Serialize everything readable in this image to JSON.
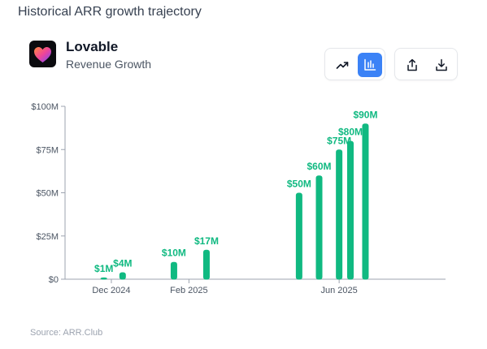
{
  "heading": "Historical ARR growth trajectory",
  "company": {
    "name": "Lovable",
    "subtitle": "Revenue Growth",
    "logo_icon": "lovable-heart-logo"
  },
  "toolbar": {
    "view_buttons": [
      {
        "icon": "trend-line-icon",
        "active": false
      },
      {
        "icon": "bar-chart-icon",
        "active": true
      }
    ],
    "action_buttons": [
      {
        "icon": "share-icon"
      },
      {
        "icon": "download-icon"
      }
    ]
  },
  "colors": {
    "bar": "#10b981",
    "label": "#10b981",
    "accent": "#3b82f6",
    "axis": "#9ca3af",
    "tick_text": "#4b5563"
  },
  "chart_data": {
    "type": "bar",
    "x_axis": "time",
    "x_domain": [
      "2024-10-25",
      "2025-08-25"
    ],
    "x_ticks": [
      {
        "date": "2024-12-01",
        "label": "Dec 2024"
      },
      {
        "date": "2025-02-01",
        "label": "Feb 2025"
      },
      {
        "date": "2025-06-01",
        "label": "Jun 2025"
      }
    ],
    "ylim": [
      0,
      100
    ],
    "y_ticks": [
      {
        "value": 0,
        "label": "$0"
      },
      {
        "value": 25,
        "label": "$25M"
      },
      {
        "value": 50,
        "label": "$50M"
      },
      {
        "value": 75,
        "label": "$75M"
      },
      {
        "value": 100,
        "label": "$100M"
      }
    ],
    "points": [
      {
        "date": "2024-11-25",
        "value": 1,
        "label": "$1M"
      },
      {
        "date": "2024-12-10",
        "value": 4,
        "label": "$4M"
      },
      {
        "date": "2025-01-20",
        "value": 10,
        "label": "$10M"
      },
      {
        "date": "2025-02-15",
        "value": 17,
        "label": "$17M"
      },
      {
        "date": "2025-04-30",
        "value": 50,
        "label": "$50M"
      },
      {
        "date": "2025-05-16",
        "value": 60,
        "label": "$60M"
      },
      {
        "date": "2025-06-01",
        "value": 75,
        "label": "$75M"
      },
      {
        "date": "2025-06-10",
        "value": 80,
        "label": "$80M"
      },
      {
        "date": "2025-06-22",
        "value": 90,
        "label": "$90M"
      }
    ]
  },
  "source": "Source: ARR.Club"
}
